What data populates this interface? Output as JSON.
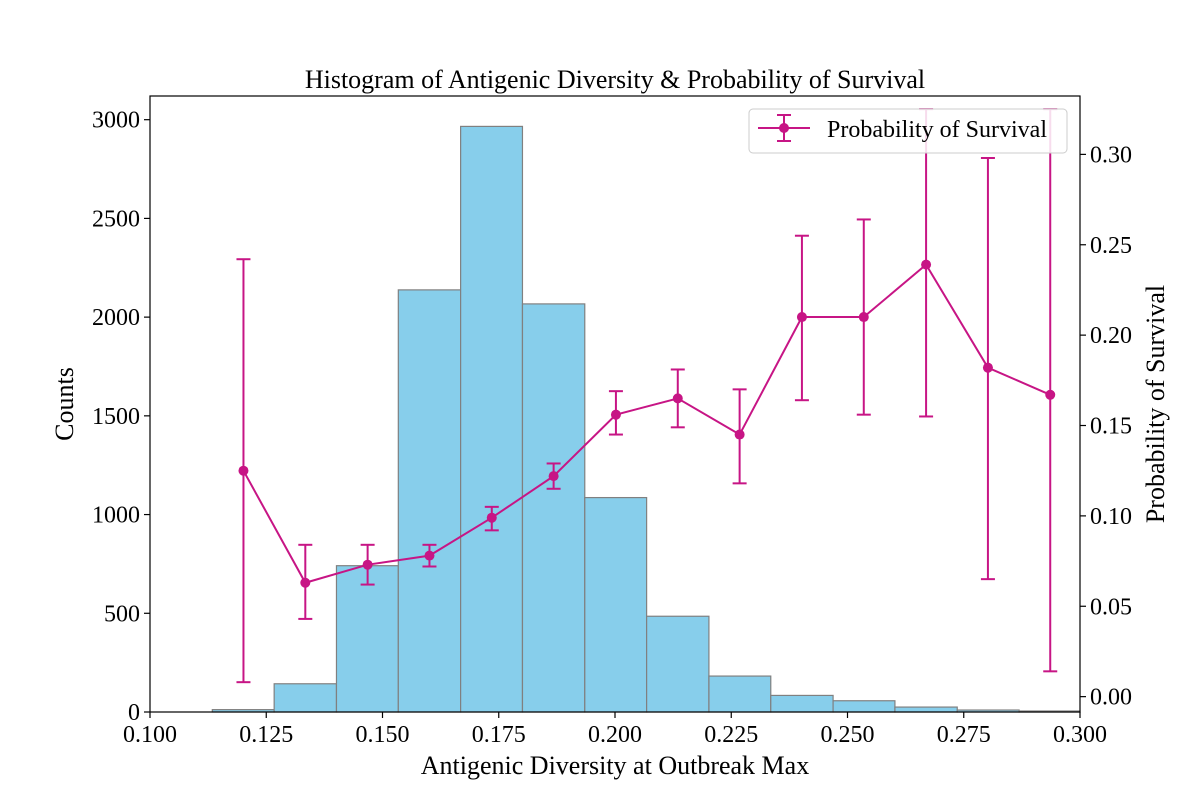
{
  "chart_data": {
    "type": "bar",
    "title": "Histogram of Antigenic Diversity & Probability of Survival",
    "xlabel": "Antigenic Diversity at Outbreak Max",
    "ylabel_left": "Counts",
    "ylabel_right": "Probability of Survival",
    "xlim": [
      0.1,
      0.3
    ],
    "ylim_left": [
      0,
      3120
    ],
    "ylim_right": [
      -0.0085,
      0.3323
    ],
    "x_ticks": [
      "0.100",
      "0.125",
      "0.150",
      "0.175",
      "0.200",
      "0.225",
      "0.250",
      "0.275",
      "0.300"
    ],
    "y_left_ticks": [
      "0",
      "500",
      "1000",
      "1500",
      "2000",
      "2500",
      "3000"
    ],
    "y_right_ticks": [
      "0.00",
      "0.05",
      "0.10",
      "0.15",
      "0.20",
      "0.25",
      "0.30"
    ],
    "grid": false,
    "legend_position": "top-right",
    "histogram": {
      "bin_edges": [
        0.1134,
        0.1267,
        0.1401,
        0.1534,
        0.1668,
        0.1801,
        0.1935,
        0.2068,
        0.2202,
        0.2335,
        0.2469,
        0.2602,
        0.2736,
        0.2869,
        0.3003
      ],
      "counts": [
        12,
        143,
        741,
        2138,
        2966,
        2067,
        1086,
        485,
        182,
        84,
        57,
        25,
        10,
        5
      ],
      "color": "#87ceeb",
      "edge_color": "#808080"
    },
    "series": [
      {
        "name": "Probability of Survival",
        "type": "line-errorbar",
        "color": "#c71585",
        "x": [
          0.1201,
          0.1334,
          0.1468,
          0.1601,
          0.1735,
          0.1868,
          0.2002,
          0.2135,
          0.2268,
          0.2402,
          0.2535,
          0.2669,
          0.2802,
          0.2936
        ],
        "y": [
          0.125,
          0.063,
          0.073,
          0.078,
          0.099,
          0.122,
          0.156,
          0.165,
          0.145,
          0.21,
          0.21,
          0.239,
          0.182,
          0.167
        ],
        "err_low": [
          0.008,
          0.043,
          0.062,
          0.072,
          0.092,
          0.115,
          0.145,
          0.149,
          0.118,
          0.164,
          0.156,
          0.155,
          0.065,
          0.014
        ],
        "err_high": [
          0.242,
          0.084,
          0.084,
          0.084,
          0.105,
          0.129,
          0.169,
          0.181,
          0.17,
          0.255,
          0.264,
          0.325,
          0.298,
          0.325
        ]
      }
    ]
  }
}
